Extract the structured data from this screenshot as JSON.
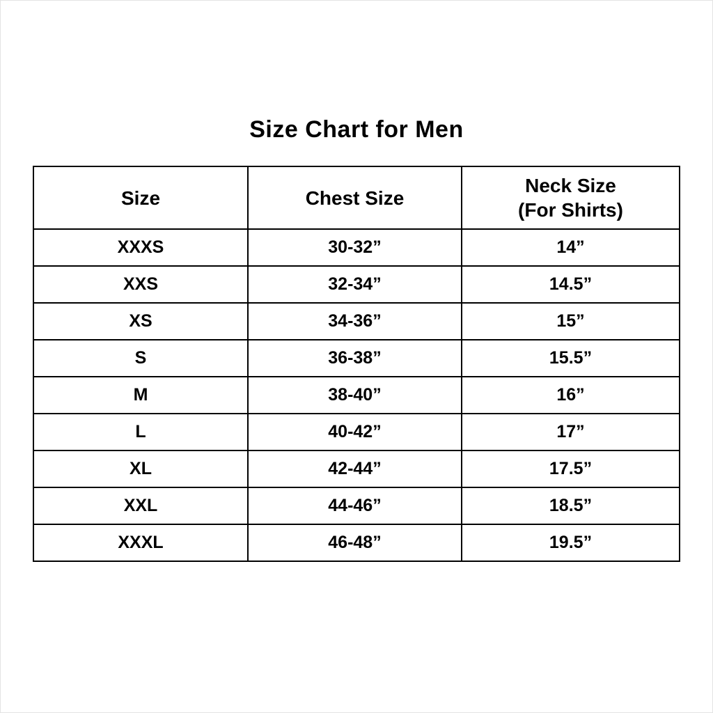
{
  "page": {
    "title": "Size Chart for Men"
  },
  "table": {
    "columns": [
      {
        "label": "Size",
        "sublabel": ""
      },
      {
        "label": "Chest Size",
        "sublabel": ""
      },
      {
        "label": "Neck Size",
        "sublabel": "(For Shirts)"
      }
    ],
    "rows": [
      [
        "XXXS",
        "30-32”",
        "14”"
      ],
      [
        "XXS",
        "32-34”",
        "14.5”"
      ],
      [
        "XS",
        "34-36”",
        "15”"
      ],
      [
        "S",
        "36-38”",
        "15.5”"
      ],
      [
        "M",
        "38-40”",
        "16”"
      ],
      [
        "L",
        "40-42”",
        "17”"
      ],
      [
        "XL",
        "42-44”",
        "17.5”"
      ],
      [
        "XXL",
        "44-46”",
        "18.5”"
      ],
      [
        "XXXL",
        "46-48”",
        "19.5”"
      ]
    ]
  },
  "chart_data": {
    "type": "table",
    "title": "Size Chart for Men",
    "columns": [
      "Size",
      "Chest Size",
      "Neck Size (For Shirts)"
    ],
    "rows": [
      [
        "XXXS",
        "30-32”",
        "14”"
      ],
      [
        "XXS",
        "32-34”",
        "14.5”"
      ],
      [
        "XS",
        "34-36”",
        "15”"
      ],
      [
        "S",
        "36-38”",
        "15.5”"
      ],
      [
        "M",
        "38-40”",
        "16”"
      ],
      [
        "L",
        "40-42”",
        "17”"
      ],
      [
        "XL",
        "42-44”",
        "17.5”"
      ],
      [
        "XXL",
        "44-46”",
        "18.5”"
      ],
      [
        "XXXL",
        "46-48”",
        "19.5”"
      ]
    ],
    "layout": {
      "text_color": "#000000",
      "border_color": "#000000",
      "background": "#ffffff",
      "alignment": "center"
    }
  }
}
